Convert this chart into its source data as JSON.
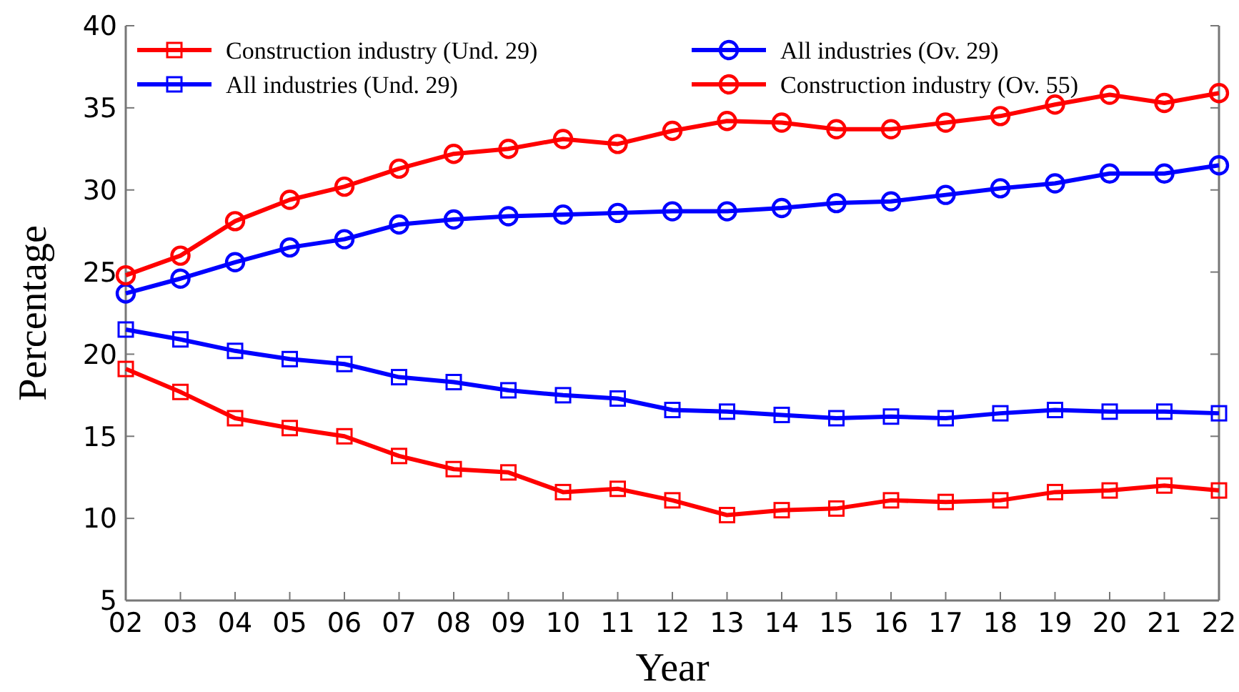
{
  "chart_data": {
    "type": "line",
    "xlabel": "Year",
    "ylabel": "Percentage",
    "categories": [
      "02",
      "03",
      "04",
      "05",
      "06",
      "07",
      "08",
      "09",
      "10",
      "11",
      "12",
      "13",
      "14",
      "15",
      "16",
      "17",
      "18",
      "19",
      "20",
      "21",
      "22"
    ],
    "ylim": [
      5,
      40
    ],
    "yticks": [
      5,
      10,
      15,
      20,
      25,
      30,
      35,
      40
    ],
    "grid": false,
    "legend": "top",
    "line_style": "solid",
    "series": [
      {
        "name": "Construction industry (Und. 29)",
        "color": "#ff0000",
        "marker": "square",
        "values": [
          19.1,
          17.7,
          16.1,
          15.5,
          15.0,
          13.8,
          13.0,
          12.8,
          11.6,
          11.8,
          11.1,
          10.2,
          10.5,
          10.6,
          11.1,
          11.0,
          11.1,
          11.6,
          11.7,
          12.0,
          11.7
        ]
      },
      {
        "name": "All industries (Und. 29)",
        "color": "#0000ff",
        "marker": "square",
        "values": [
          21.5,
          20.9,
          20.2,
          19.7,
          19.4,
          18.6,
          18.3,
          17.8,
          17.5,
          17.3,
          16.6,
          16.5,
          16.3,
          16.1,
          16.2,
          16.1,
          16.4,
          16.6,
          16.5,
          16.5,
          16.4
        ]
      },
      {
        "name": "All industries (Ov. 29)",
        "color": "#0000ff",
        "marker": "circle",
        "values": [
          23.7,
          24.6,
          25.6,
          26.5,
          27.0,
          27.9,
          28.2,
          28.4,
          28.5,
          28.6,
          28.7,
          28.7,
          28.9,
          29.2,
          29.3,
          29.7,
          30.1,
          30.4,
          31.0,
          31.0,
          31.5
        ]
      },
      {
        "name": "Construction industry (Ov. 55)",
        "color": "#ff0000",
        "marker": "circle",
        "values": [
          24.8,
          26.0,
          28.1,
          29.4,
          30.2,
          31.3,
          32.2,
          32.5,
          33.1,
          32.8,
          33.6,
          34.2,
          34.1,
          33.7,
          33.7,
          34.1,
          34.5,
          35.2,
          35.8,
          35.3,
          35.9
        ]
      }
    ]
  }
}
